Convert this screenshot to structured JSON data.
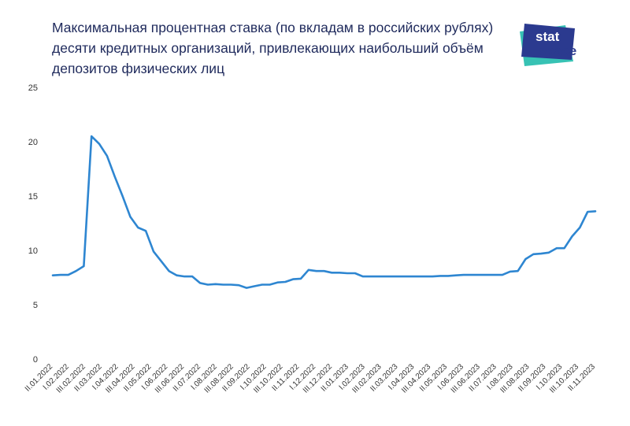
{
  "title_lines": [
    "Максимальная процентная ставка (по вкладам в российских рублях)",
    "десяти кредитных организаций, привлекающих наибольший объём",
    "депозитов физических лиц"
  ],
  "logo": {
    "line1": "stat",
    "line2": "space",
    "colors": [
      "#2b3a8f",
      "#37c2b4",
      "#ffffff"
    ]
  },
  "chart_data": {
    "type": "line",
    "title": "Максимальная процентная ставка (по вкладам в российских рублях) десяти кредитных организаций, привлекающих наибольший объём депозитов физических лиц",
    "xlabel": "",
    "ylabel": "",
    "ylim": [
      0,
      25
    ],
    "yticks": [
      0,
      5,
      10,
      15,
      20,
      25
    ],
    "grid": false,
    "line_color": "#2e86d1",
    "x_tick_labels": [
      "II.01.2022",
      "I.02.2022",
      "III.02.2022",
      "II.03.2022",
      "I.04.2022",
      "III.04.2022",
      "II.05.2022",
      "I.06.2022",
      "III.06.2022",
      "II.07.2022",
      "I.08.2022",
      "III.08.2022",
      "II.09.2022",
      "I.10.2022",
      "III.10.2022",
      "II.11.2022",
      "I.12.2022",
      "III.12.2022",
      "II.01.2023",
      "I.02.2023",
      "III.02.2023",
      "II.03.2023",
      "I.04.2023",
      "III.04.2023",
      "II.05.2023",
      "I.06.2023",
      "III.06.2023",
      "II.07.2023",
      "I.08.2023",
      "III.08.2023",
      "II.09.2023",
      "I.10.2023",
      "III.10.2023",
      "II.11.2023"
    ],
    "series": [
      {
        "values": [
          7.7,
          7.75,
          7.75,
          8.1,
          8.55,
          20.5,
          19.8,
          18.7,
          16.8,
          15.0,
          13.1,
          12.1,
          11.8,
          9.9,
          9.0,
          8.1,
          7.7,
          7.6,
          7.6,
          7.0,
          6.85,
          6.9,
          6.85,
          6.85,
          6.8,
          6.55,
          6.7,
          6.85,
          6.85,
          7.05,
          7.1,
          7.35,
          7.4,
          8.2,
          8.1,
          8.1,
          7.95,
          7.95,
          7.9,
          7.9,
          7.6,
          7.6,
          7.6,
          7.6,
          7.6,
          7.6,
          7.6,
          7.6,
          7.6,
          7.6,
          7.65,
          7.65,
          7.7,
          7.75,
          7.75,
          7.75,
          7.75,
          7.75,
          7.75,
          8.05,
          8.1,
          9.2,
          9.65,
          9.7,
          9.8,
          10.2,
          10.2,
          11.3,
          12.1,
          13.55,
          13.6
        ]
      }
    ]
  }
}
